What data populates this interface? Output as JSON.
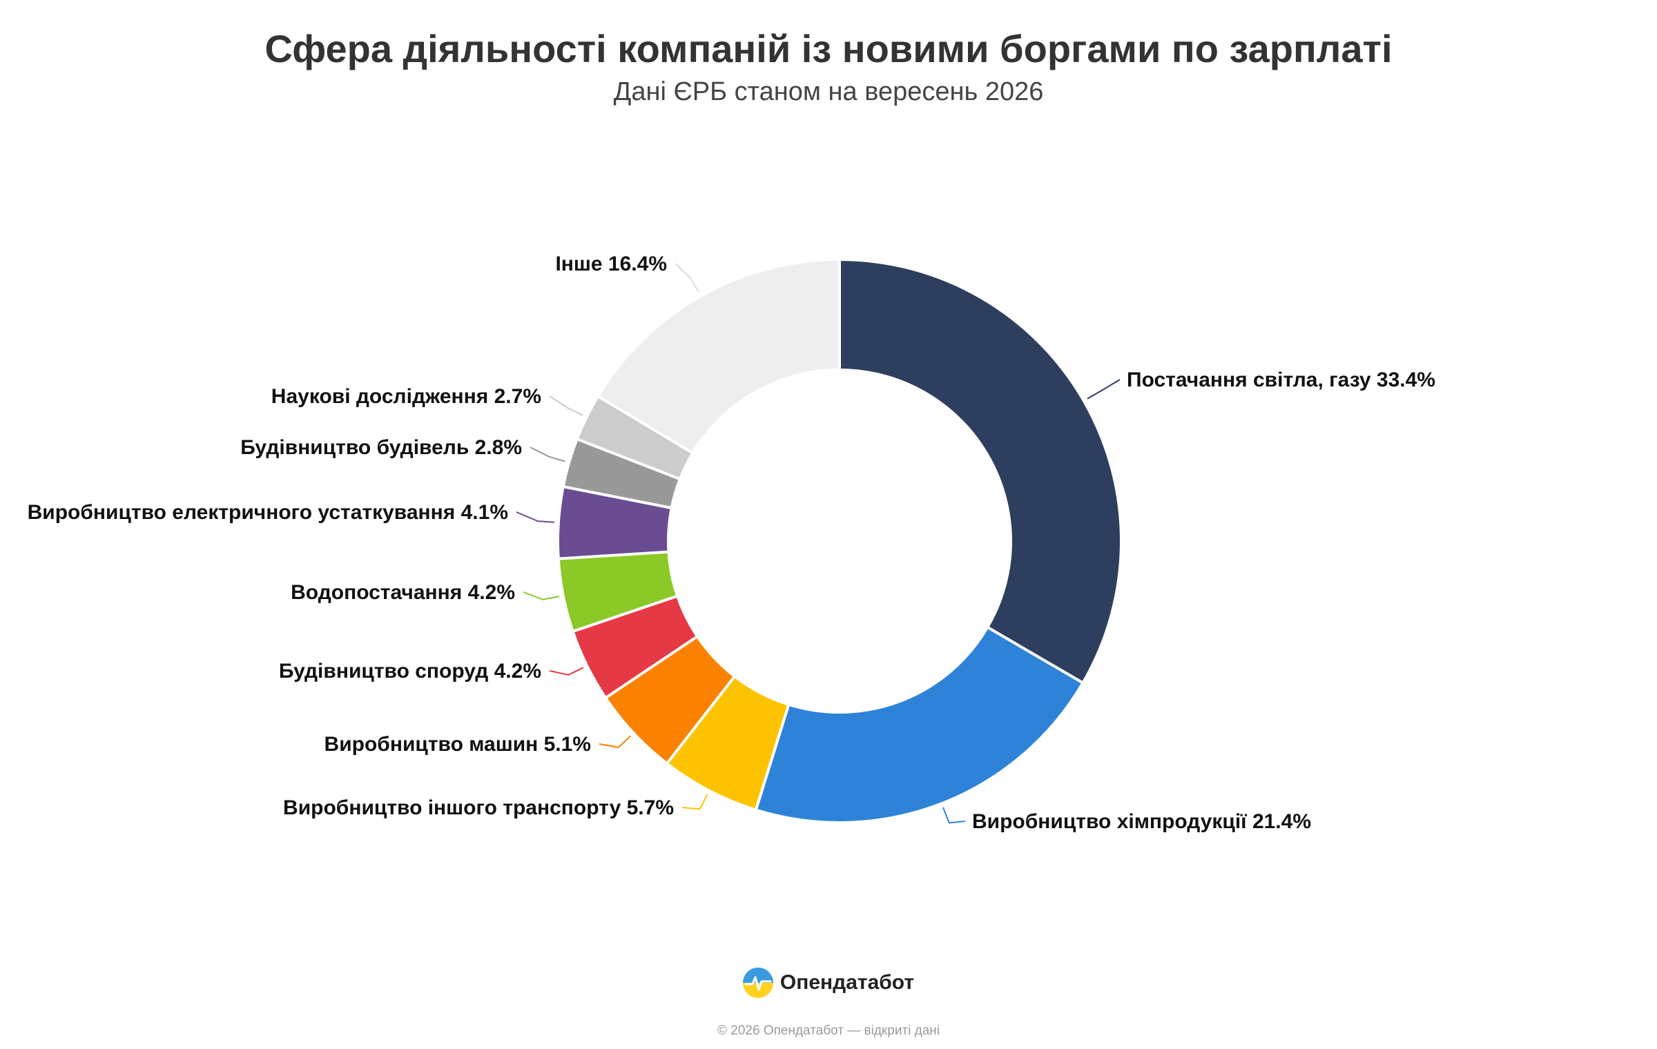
{
  "header": {
    "title": "Сфера діяльності компаній із новими боргами по зарплаті",
    "subtitle": "Дані ЄРБ станом на вересень 2026"
  },
  "chart_data": {
    "type": "pie",
    "donut": true,
    "title": "Сфера діяльності компаній із новими боргами по зарплаті",
    "subtitle": "Дані ЄРБ станом на вересень 2026",
    "value_unit": "%",
    "legend": "none",
    "slices": [
      {
        "label": "Постачання світла, газу",
        "value": 33.4,
        "color": "#2e3e5e"
      },
      {
        "label": "Виробництво хімпродукції",
        "value": 21.4,
        "color": "#2e83d9"
      },
      {
        "label": "Виробництво іншого транспорту",
        "value": 5.7,
        "color": "#fdc300"
      },
      {
        "label": "Виробництво машин",
        "value": 5.1,
        "color": "#fa8200"
      },
      {
        "label": "Будівництво споруд",
        "value": 4.2,
        "color": "#e63946"
      },
      {
        "label": "Водопостачання",
        "value": 4.2,
        "color": "#8ac926"
      },
      {
        "label": "Виробництво електричного устаткування",
        "value": 4.1,
        "color": "#6a4c93"
      },
      {
        "label": "Будівництво будівель",
        "value": 2.8,
        "color": "#999999"
      },
      {
        "label": "Наукові дослідження",
        "value": 2.7,
        "color": "#cccccc"
      },
      {
        "label": "Інше",
        "value": 16.4,
        "color": "#eeeeee"
      }
    ]
  },
  "footer": {
    "brand": "Опендатабот",
    "brand_icon": "opendatabot-logo-icon",
    "copyright": "© 2026 Опендатабот — відкриті дані"
  }
}
